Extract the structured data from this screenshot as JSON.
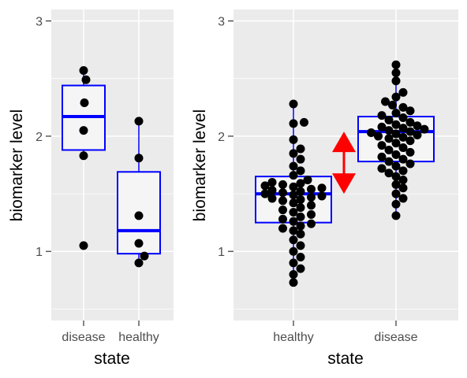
{
  "colors": {
    "panel_background": "#ebebeb",
    "grid_major": "#ffffff",
    "box_outline": "#0000ff",
    "box_fill": "#f5f5f5",
    "point": "#000000",
    "arrow": "#ff0000"
  },
  "chart_data": [
    {
      "type": "box",
      "overlay": "jitter-points",
      "xlabel": "state",
      "ylabel": "biomarker level",
      "ylim": [
        0.4,
        3.1
      ],
      "y_ticks": [
        1,
        2,
        3
      ],
      "y_tick_labels": [
        "1",
        "2",
        "3"
      ],
      "grid": true,
      "categories": [
        "disease",
        "healthy"
      ],
      "boxes": [
        {
          "category": "disease",
          "q1": 1.88,
          "median": 2.17,
          "q3": 2.44,
          "whisker_low": 1.83,
          "whisker_high": 2.57
        },
        {
          "category": "healthy",
          "q1": 0.98,
          "median": 1.18,
          "q3": 1.69,
          "whisker_low": 0.9,
          "whisker_high": 2.13
        }
      ],
      "points": [
        {
          "category": "disease",
          "values": [
            2.57,
            2.49,
            2.29,
            2.05,
            1.83,
            1.05
          ]
        },
        {
          "category": "healthy",
          "values": [
            2.13,
            1.81,
            1.31,
            1.07,
            0.96,
            0.9
          ]
        }
      ]
    },
    {
      "type": "box",
      "overlay": "beeswarm-points",
      "xlabel": "state",
      "ylabel": "biomarker level",
      "ylim": [
        0.4,
        3.1
      ],
      "y_ticks": [
        1,
        2,
        3
      ],
      "y_tick_labels": [
        "1",
        "2",
        "3"
      ],
      "grid": true,
      "categories": [
        "healthy",
        "disease"
      ],
      "boxes": [
        {
          "category": "healthy",
          "q1": 1.25,
          "median": 1.5,
          "q3": 1.65,
          "whisker_low": 0.73,
          "whisker_high": 2.28
        },
        {
          "category": "disease",
          "q1": 1.78,
          "median": 2.04,
          "q3": 2.17,
          "whisker_low": 1.31,
          "whisker_high": 2.62
        }
      ],
      "points": [
        {
          "category": "healthy",
          "values": [
            2.28,
            2.12,
            2.11,
            1.97,
            1.89,
            1.85,
            1.8,
            1.74,
            1.7,
            1.66,
            1.62,
            1.6,
            1.59,
            1.58,
            1.57,
            1.56,
            1.55,
            1.54,
            1.53,
            1.52,
            1.51,
            1.5,
            1.49,
            1.48,
            1.47,
            1.46,
            1.45,
            1.44,
            1.42,
            1.4,
            1.38,
            1.36,
            1.34,
            1.32,
            1.3,
            1.28,
            1.26,
            1.24,
            1.22,
            1.2,
            1.18,
            1.15,
            1.1,
            1.05,
            1.0,
            0.95,
            0.9,
            0.85,
            0.8,
            0.73
          ]
        },
        {
          "category": "disease",
          "values": [
            2.62,
            2.55,
            2.48,
            2.38,
            2.34,
            2.3,
            2.27,
            2.25,
            2.22,
            2.2,
            2.18,
            2.16,
            2.14,
            2.12,
            2.1,
            2.09,
            2.08,
            2.07,
            2.06,
            2.05,
            2.04,
            2.03,
            2.02,
            2.01,
            2.0,
            1.99,
            1.98,
            1.96,
            1.94,
            1.92,
            1.9,
            1.88,
            1.86,
            1.84,
            1.82,
            1.8,
            1.78,
            1.76,
            1.74,
            1.72,
            1.7,
            1.68,
            1.65,
            1.62,
            1.58,
            1.55,
            1.5,
            1.46,
            1.41,
            1.31
          ]
        }
      ],
      "annotations": [
        {
          "type": "double-arrow",
          "between": [
            "healthy",
            "disease"
          ],
          "from": 1.5,
          "to": 2.04,
          "color": "#ff0000"
        }
      ]
    }
  ]
}
